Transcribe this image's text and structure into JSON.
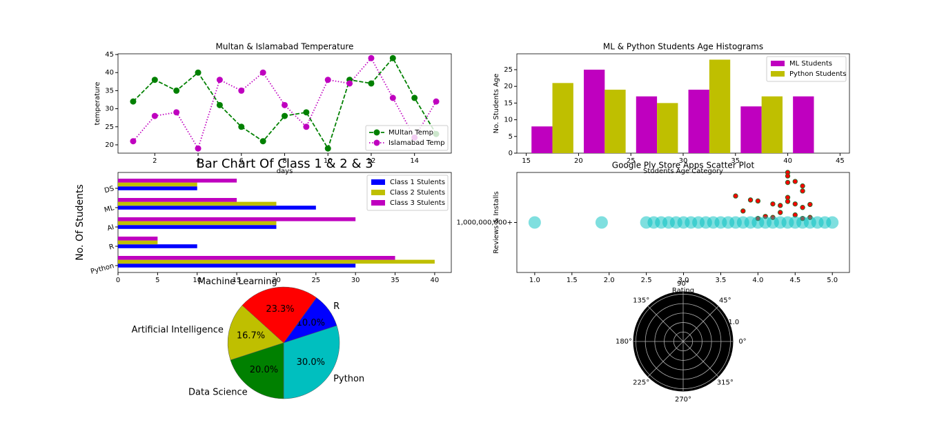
{
  "chart_data": [
    {
      "type": "line",
      "title": "Multan & Islamabad Temperature",
      "x_label": "days",
      "y_label": "temperature",
      "x": [
        1,
        2,
        3,
        4,
        5,
        6,
        7,
        8,
        9,
        10,
        11,
        12,
        13,
        14,
        15
      ],
      "series": [
        {
          "name": "MUltan Temp",
          "color": "#008000",
          "line_style": "dashed",
          "values": [
            32,
            38,
            35,
            40,
            31,
            25,
            21,
            28,
            29,
            19,
            38,
            37,
            44,
            33,
            23
          ]
        },
        {
          "name": "Islamabad Temp",
          "color": "#bf00bf",
          "line_style": "dotted",
          "values": [
            21,
            28,
            29,
            19,
            38,
            35,
            40,
            31,
            25,
            38,
            37,
            44,
            33,
            22,
            32
          ]
        }
      ],
      "xlim": [
        0.3,
        15.7
      ],
      "ylim": [
        17.7,
        45.2
      ],
      "xticks": [
        2,
        4,
        6,
        8,
        10,
        12,
        14
      ],
      "yticks": [
        20,
        25,
        30,
        35,
        40,
        45
      ],
      "legend": "lower right"
    },
    {
      "type": "histogram",
      "title": "ML & Python Students Age Histograms",
      "x_label": "Students Age Category",
      "y_label": "No. Students Age",
      "bins": [
        15,
        20,
        25,
        30,
        35,
        40,
        45
      ],
      "series": [
        {
          "name": "ML Students",
          "color": "#bf00bf",
          "values": [
            8,
            25,
            17,
            19,
            14,
            17
          ]
        },
        {
          "name": "Python Students",
          "color": "#bfbf00",
          "values": [
            21,
            19,
            15,
            28,
            17,
            0
          ]
        }
      ],
      "xlim": [
        14.1,
        45.9
      ],
      "ylim": [
        0,
        29.75
      ],
      "xticks": [
        15,
        20,
        25,
        30,
        35,
        40,
        45
      ],
      "yticks": [
        0,
        5,
        10,
        15,
        20,
        25
      ],
      "legend": "upper right"
    },
    {
      "type": "hbar",
      "title": "Bar Chart Of Class 1 & 2 & 3",
      "y_label": "No. Of Students",
      "categories": [
        "Python",
        "R",
        "AI",
        "ML",
        "DS"
      ],
      "series": [
        {
          "name": "Class 1 Stulents",
          "color": "#0000ff",
          "values": [
            30,
            10,
            20,
            25,
            10
          ]
        },
        {
          "name": "Class 2 Stulents",
          "color": "#bfbf00",
          "values": [
            40,
            5,
            20,
            20,
            10
          ]
        },
        {
          "name": "Class 3 Stulents",
          "color": "#bf00bf",
          "values": [
            35,
            5,
            30,
            15,
            15
          ]
        }
      ],
      "xlim": [
        0,
        42.1
      ],
      "xticks": [
        0,
        5,
        10,
        15,
        20,
        25,
        30,
        35,
        40
      ],
      "legend": "upper right"
    },
    {
      "type": "scatter",
      "title": "Google Ply Store Apps Scatter Plot",
      "x_label": "Rating",
      "y_label": "Reviews & Installs",
      "series": [
        {
          "color": "#ff0000",
          "x": [
            3.7,
            3.8,
            3.9,
            4.0,
            4.2,
            4.3,
            4.4,
            4.4,
            4.4,
            4.5,
            4.6,
            4.6,
            4.6,
            4.7,
            4.4,
            4.4,
            4.5,
            4.1,
            4.3,
            4.5,
            4.2,
            4.0,
            4.6,
            4.7
          ],
          "y": [
            0.53,
            0.23,
            0.45,
            0.43,
            0.37,
            0.34,
            0.8,
            0.5,
            0.42,
            0.37,
            0.3,
            0.73,
            0.63,
            0.36,
            1.0,
            0.93,
            0.82,
            0.12,
            0.2,
            0.15,
            0.1,
            0.08,
            0.08,
            0.1
          ]
        },
        {
          "color": "#00bfbf",
          "x": [
            1.0,
            1.9,
            2.5,
            2.6,
            2.7,
            2.8,
            2.9,
            3.0,
            3.1,
            3.2,
            3.3,
            3.4,
            3.5,
            3.6,
            3.7,
            3.8,
            3.9,
            4.0,
            4.1,
            4.2,
            4.3,
            4.4,
            4.5,
            4.6,
            4.7,
            4.8,
            4.9,
            5.0
          ],
          "y": [
            0,
            0,
            0,
            0,
            0,
            0,
            0,
            0,
            0,
            0,
            0,
            0,
            0,
            0,
            0,
            0,
            0,
            0,
            0,
            0,
            0,
            0,
            0,
            0,
            0,
            0,
            0,
            0
          ]
        }
      ],
      "xlim": [
        0.76,
        5.23
      ],
      "ylim": [
        -1,
        1
      ],
      "xticks": [
        {
          "value": 1,
          "label": "1.0"
        },
        {
          "value": 1.5,
          "label": "1.5"
        },
        {
          "value": 2,
          "label": "2.0"
        },
        {
          "value": 2.5,
          "label": "2.5"
        },
        {
          "value": 3,
          "label": "3.0"
        },
        {
          "value": 3.5,
          "label": "3.5"
        },
        {
          "value": 4,
          "label": "4.0"
        },
        {
          "value": 4.5,
          "label": "4.5"
        },
        {
          "value": 5,
          "label": "5.0"
        }
      ],
      "yticks": [
        {
          "value": 0,
          "label": "1,000,000,000+"
        }
      ]
    },
    {
      "type": "pie",
      "labels": [
        "Python",
        "R",
        "Machine Learning",
        "Artificial Intelligence",
        "Data Science"
      ],
      "values": [
        30,
        10,
        23.3,
        16.7,
        20
      ],
      "value_labels": [
        "30.0%",
        "10.0%",
        "23.3%",
        "16.7%",
        "20.0%"
      ],
      "colors": [
        "#00bfbf",
        "#0000ff",
        "#ff0000",
        "#bfbf00",
        "#008000"
      ]
    },
    {
      "type": "polar",
      "background": "#000000",
      "rlim": [
        0,
        1.05
      ],
      "thetaticks": [
        {
          "value": 0,
          "label": "0°"
        },
        {
          "value": 45,
          "label": "45°"
        },
        {
          "value": 90,
          "label": "90°"
        },
        {
          "value": 135,
          "label": "135°"
        },
        {
          "value": 180,
          "label": "180°"
        },
        {
          "value": 225,
          "label": "225°"
        },
        {
          "value": 270,
          "label": "270°"
        },
        {
          "value": 315,
          "label": "315°"
        }
      ],
      "rticks": [
        0.2,
        0.4,
        0.6,
        0.8,
        {
          "value": 1,
          "label": "1.0"
        }
      ]
    }
  ]
}
